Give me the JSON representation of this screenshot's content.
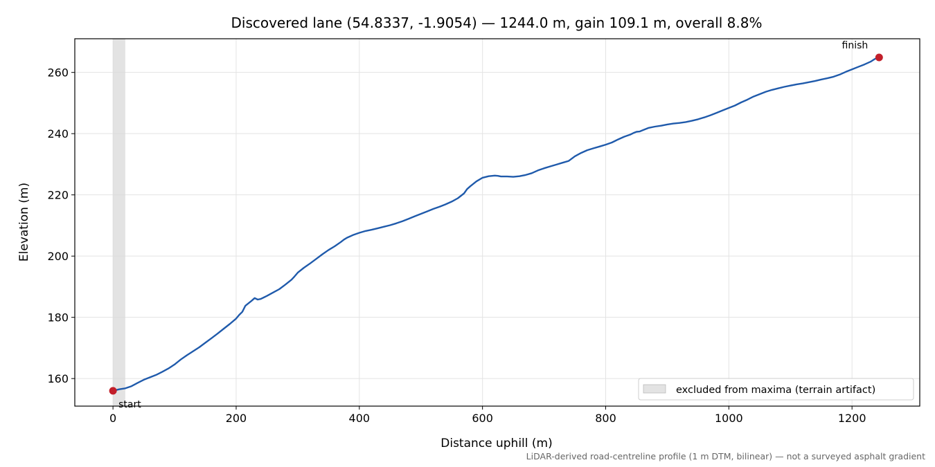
{
  "chart_data": {
    "type": "line",
    "title": "Discovered lane (54.8337, -1.9054) — 1244.0 m, gain 109.1 m, overall 8.8%",
    "xlabel": "Distance uphill (m)",
    "ylabel": "Elevation (m)",
    "xlim": [
      -62,
      1310
    ],
    "ylim": [
      151,
      271
    ],
    "xticks": [
      0,
      200,
      400,
      600,
      800,
      1000,
      1200
    ],
    "yticks": [
      160,
      180,
      200,
      220,
      240,
      260
    ],
    "grid": true,
    "line_color": "#1f5aab",
    "marker_color": "#c21f2a",
    "band_color": "#d9d9d9",
    "series": [
      {
        "x": [
          0,
          10,
          20,
          30,
          40,
          50,
          60,
          70,
          80,
          90,
          100,
          110,
          120,
          130,
          140,
          150,
          160,
          170,
          180,
          190,
          200,
          205,
          210,
          215,
          220,
          225,
          230,
          235,
          240,
          250,
          260,
          270,
          280,
          290,
          295,
          300,
          310,
          320,
          330,
          340,
          350,
          360,
          370,
          375,
          380,
          390,
          400,
          410,
          420,
          430,
          440,
          450,
          460,
          470,
          480,
          490,
          500,
          510,
          520,
          530,
          540,
          550,
          560,
          570,
          575,
          580,
          590,
          600,
          610,
          620,
          625,
          630,
          640,
          650,
          660,
          670,
          680,
          690,
          700,
          710,
          720,
          730,
          740,
          750,
          760,
          770,
          780,
          790,
          800,
          810,
          820,
          830,
          840,
          845,
          850,
          855,
          860,
          865,
          870,
          880,
          890,
          900,
          910,
          920,
          930,
          940,
          950,
          960,
          970,
          980,
          990,
          1000,
          1010,
          1020,
          1030,
          1040,
          1050,
          1060,
          1070,
          1080,
          1090,
          1100,
          1110,
          1120,
          1130,
          1140,
          1150,
          1160,
          1170,
          1180,
          1190,
          1200,
          1210,
          1220,
          1230,
          1237,
          1244
        ],
        "y": [
          156.0,
          156.5,
          156.8,
          157.5,
          158.6,
          159.6,
          160.4,
          161.2,
          162.2,
          163.3,
          164.6,
          166.2,
          167.6,
          168.9,
          170.2,
          171.7,
          173.2,
          174.7,
          176.3,
          177.9,
          179.6,
          180.8,
          181.8,
          183.8,
          184.6,
          185.4,
          186.3,
          185.8,
          186.0,
          187.0,
          188.1,
          189.2,
          190.7,
          192.3,
          193.4,
          194.6,
          196.2,
          197.6,
          199.1,
          200.6,
          202.0,
          203.2,
          204.6,
          205.4,
          206.0,
          206.9,
          207.6,
          208.2,
          208.6,
          209.1,
          209.6,
          210.1,
          210.7,
          211.4,
          212.2,
          213.0,
          213.8,
          214.6,
          215.4,
          216.1,
          216.9,
          217.8,
          218.9,
          220.5,
          221.9,
          222.8,
          224.4,
          225.6,
          226.1,
          226.3,
          226.2,
          226.0,
          226.0,
          225.9,
          226.1,
          226.5,
          227.1,
          228.0,
          228.7,
          229.3,
          229.9,
          230.5,
          231.1,
          232.6,
          233.7,
          234.6,
          235.2,
          235.8,
          236.4,
          237.1,
          238.1,
          239.0,
          239.7,
          240.2,
          240.6,
          240.7,
          241.1,
          241.5,
          241.9,
          242.3,
          242.6,
          243.0,
          243.3,
          243.5,
          243.8,
          244.2,
          244.7,
          245.3,
          246.0,
          246.8,
          247.6,
          248.4,
          249.2,
          250.2,
          251.1,
          252.1,
          252.9,
          253.7,
          254.3,
          254.8,
          255.3,
          255.7,
          256.1,
          256.4,
          256.8,
          257.2,
          257.7,
          258.1,
          258.6,
          259.3,
          260.2,
          261.0,
          261.8,
          262.6,
          263.5,
          264.4,
          264.9
        ]
      }
    ],
    "markers": [
      {
        "x": 0,
        "y": 156.0,
        "label": "start"
      },
      {
        "x": 1244,
        "y": 264.9,
        "label": "finish"
      }
    ],
    "excluded_band": {
      "x_from": 0,
      "x_to": 20
    },
    "legend": {
      "position": "lower-right",
      "label": "excluded from maxima (terrain artifact)"
    },
    "footer_note": "LiDAR-derived road-centreline profile (1 m DTM, bilinear) — not a surveyed asphalt gradient"
  }
}
